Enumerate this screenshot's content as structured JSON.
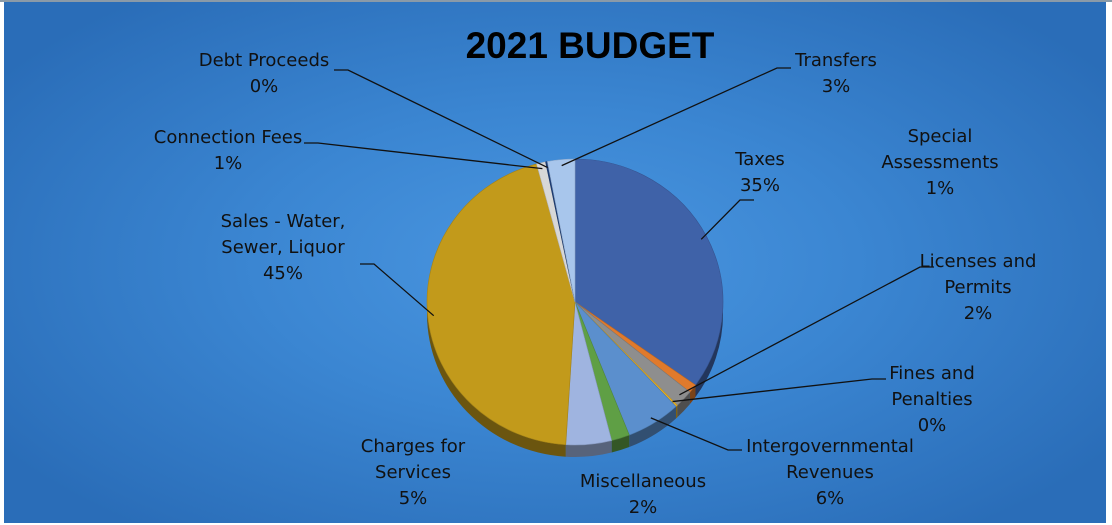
{
  "chart_data": {
    "type": "pie",
    "title": "2021 BUDGET",
    "slices": [
      {
        "label": [
          "Taxes"
        ],
        "pct": "35%",
        "value": 35,
        "color": "#3f62a8"
      },
      {
        "label": [
          "Special",
          "Assessments"
        ],
        "pct": "1%",
        "value": 1,
        "color": "#e07a2c"
      },
      {
        "label": [
          "Licenses and",
          "Permits"
        ],
        "pct": "2%",
        "value": 2,
        "color": "#8e8e8e"
      },
      {
        "label": [
          "Fines and",
          "Penalties"
        ],
        "pct": "0%",
        "value": 0,
        "color": "#e8b020"
      },
      {
        "label": [
          "Intergovernmental",
          "Revenues"
        ],
        "pct": "6%",
        "value": 6,
        "color": "#5b8fcd"
      },
      {
        "label": [
          "Miscellaneous"
        ],
        "pct": "2%",
        "value": 2,
        "color": "#5f9f45"
      },
      {
        "label": [
          "Charges for",
          "Services"
        ],
        "pct": "5%",
        "value": 5,
        "color": "#9fb4e0"
      },
      {
        "label": [
          "Sales - Water,",
          "Sewer, Liquor"
        ],
        "pct": "45%",
        "value": 45,
        "color": "#c29a1b"
      },
      {
        "label": [
          "Connection Fees"
        ],
        "pct": "1%",
        "value": 1,
        "color": "#d7d7d7"
      },
      {
        "label": [
          "Debt Proceeds"
        ],
        "pct": "0%",
        "value": 0,
        "color": "#1f3f78"
      },
      {
        "label": [
          "Transfers"
        ],
        "pct": "3%",
        "value": 3,
        "color": "#a8c6ec"
      }
    ],
    "legend": "none"
  }
}
